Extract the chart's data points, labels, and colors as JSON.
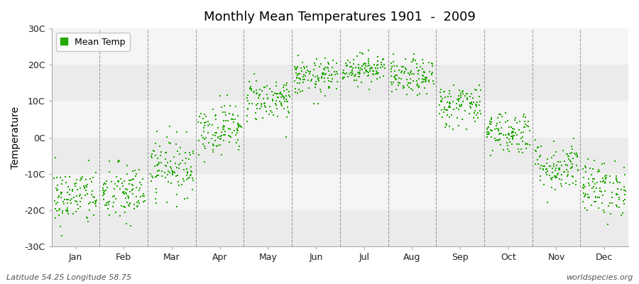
{
  "title": "Monthly Mean Temperatures 1901  -  2009",
  "ylabel": "Temperature",
  "ylim": [
    -30,
    30
  ],
  "yticks": [
    -30,
    -20,
    -10,
    0,
    10,
    20,
    30
  ],
  "ytick_labels": [
    "-30C",
    "-20C",
    "-10C",
    "0C",
    "10C",
    "20C",
    "30C"
  ],
  "months": [
    "Jan",
    "Feb",
    "Mar",
    "Apr",
    "May",
    "Jun",
    "Jul",
    "Aug",
    "Sep",
    "Oct",
    "Nov",
    "Dec"
  ],
  "mean_temps": [
    -16.5,
    -15.5,
    -8.0,
    2.5,
    10.5,
    16.5,
    19.0,
    16.5,
    9.0,
    1.5,
    -8.0,
    -14.0
  ],
  "std_temps": [
    4.0,
    4.2,
    4.0,
    3.5,
    3.0,
    2.5,
    2.0,
    2.5,
    3.0,
    3.0,
    3.5,
    3.8
  ],
  "n_years": 109,
  "dot_color": "#22aa00",
  "dot_size": 3,
  "background_color": "#ffffff",
  "band_colors": [
    "#ebebeb",
    "#f5f5f5"
  ],
  "grid_color": "#777777",
  "legend_label": "Mean Temp",
  "footer_left": "Latitude 54.25 Longitude 58.75",
  "footer_right": "worldspecies.org",
  "seed": 42
}
